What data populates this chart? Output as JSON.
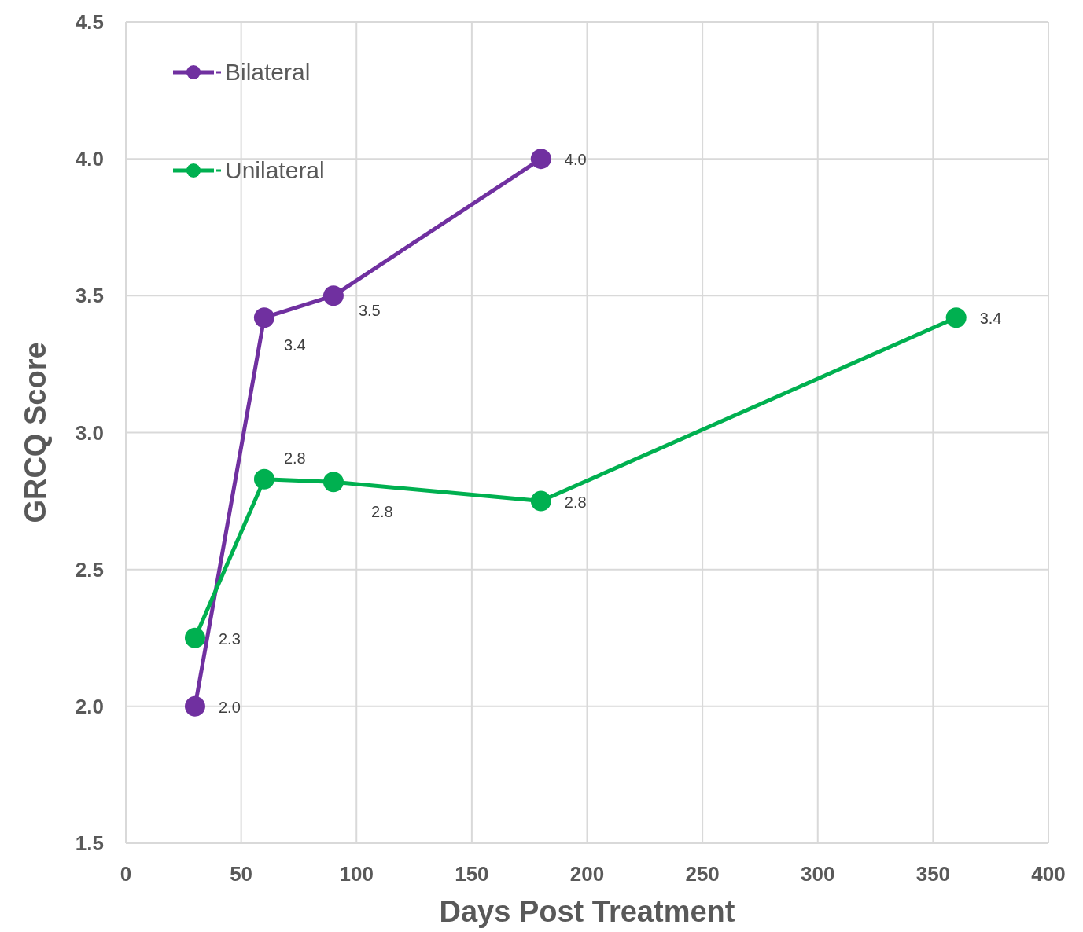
{
  "chart_data": {
    "type": "line",
    "xlabel": "Days Post Treatment",
    "ylabel": "GRCQ Score",
    "xlim": [
      0,
      400
    ],
    "ylim": [
      1.5,
      4.5
    ],
    "xticks": [
      0,
      50,
      100,
      150,
      200,
      250,
      300,
      350,
      400
    ],
    "yticks": [
      {
        "value": 1.5,
        "label": "1.5"
      },
      {
        "value": 2,
        "label": "2.0"
      },
      {
        "value": 2.5,
        "label": "2.5"
      },
      {
        "value": 3,
        "label": "3.0"
      },
      {
        "value": 3.5,
        "label": "3.5"
      },
      {
        "value": 4,
        "label": "4.0"
      },
      {
        "value": 4.5,
        "label": "4.5"
      }
    ],
    "grid": true,
    "legend": "top left",
    "marker": "circle",
    "line_style": "solid",
    "series": [
      {
        "name": "Bilateral",
        "color": "#7030a0",
        "x": [
          30,
          60,
          90,
          180
        ],
        "values": [
          2.0,
          3.42,
          3.5,
          4.0
        ],
        "value_labels": [
          "2.0",
          "3.4",
          "3.5",
          "4.0"
        ]
      },
      {
        "name": "Unilateral",
        "color": "#00b050",
        "x": [
          30,
          60,
          90,
          180,
          360
        ],
        "values": [
          2.25,
          2.83,
          2.82,
          2.75,
          3.42
        ],
        "value_labels": [
          "2.3",
          "2.8",
          "2.8",
          "2.8",
          "3.4"
        ]
      }
    ]
  }
}
